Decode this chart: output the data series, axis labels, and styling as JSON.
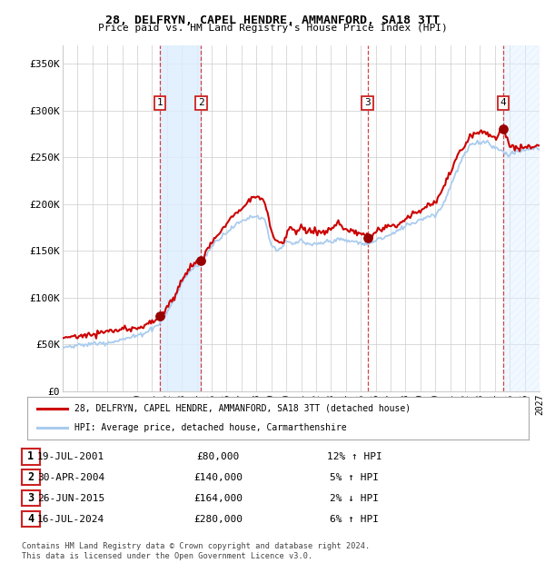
{
  "title1": "28, DELFRYN, CAPEL HENDRE, AMMANFORD, SA18 3TT",
  "title2": "Price paid vs. HM Land Registry's House Price Index (HPI)",
  "ylim": [
    0,
    370000
  ],
  "yticks": [
    0,
    50000,
    100000,
    150000,
    200000,
    250000,
    300000,
    350000
  ],
  "ytick_labels": [
    "£0",
    "£50K",
    "£100K",
    "£150K",
    "£200K",
    "£250K",
    "£300K",
    "£350K"
  ],
  "x_start_year": 1995,
  "x_end_year": 2027,
  "sale_labels": [
    "1",
    "2",
    "3",
    "4"
  ],
  "legend_line1": "28, DELFRYN, CAPEL HENDRE, AMMANFORD, SA18 3TT (detached house)",
  "legend_line2": "HPI: Average price, detached house, Carmarthenshire",
  "table_rows": [
    {
      "num": "1",
      "date": "19-JUL-2001",
      "price": "£80,000",
      "pct": "12% ↑ HPI"
    },
    {
      "num": "2",
      "date": "30-APR-2004",
      "price": "£140,000",
      "pct": "5% ↑ HPI"
    },
    {
      "num": "3",
      "date": "26-JUN-2015",
      "price": "£164,000",
      "pct": "2% ↓ HPI"
    },
    {
      "num": "4",
      "date": "16-JUL-2024",
      "price": "£280,000",
      "pct": "6% ↑ HPI"
    }
  ],
  "footnote1": "Contains HM Land Registry data © Crown copyright and database right 2024.",
  "footnote2": "This data is licensed under the Open Government Licence v3.0.",
  "line_color_red": "#cc0000",
  "line_color_blue": "#aaccee",
  "dot_color": "#990000",
  "vline_color": "#cc2222",
  "shade_color": "#ddeeff",
  "background_color": "#ffffff",
  "grid_color": "#cccccc"
}
